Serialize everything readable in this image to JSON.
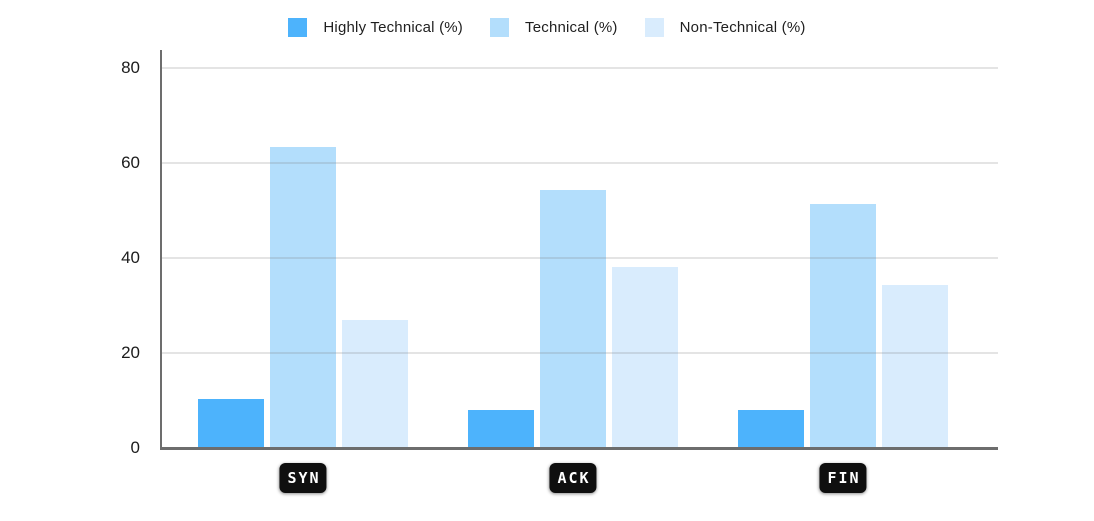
{
  "chart": {
    "background": "#ffffff",
    "axis_color": "#6d6d6d",
    "grid_color": "#e7e7e7",
    "tick_color": "#1c1c1c",
    "legend_text_color": "#1f1f1f",
    "badge_bg": "#0f0f0f",
    "badge_text_color": "#ffffff"
  },
  "chart_data": {
    "type": "bar",
    "title": "",
    "categories": [
      "SYN",
      "ACK",
      "FIN"
    ],
    "series": [
      {
        "name": "Highly Technical (%)",
        "color": "#4db3fc",
        "values": [
          10.3,
          8.1,
          8.1
        ]
      },
      {
        "name": "Technical (%)",
        "color": "#b3defc",
        "values": [
          63.4,
          54.3,
          51.4
        ]
      },
      {
        "name": "Non-Technical (%)",
        "color": "#d9ecfd",
        "values": [
          26.9,
          38.0,
          34.4
        ]
      }
    ],
    "xlabel": "",
    "ylabel": "",
    "ylim": [
      0,
      80
    ],
    "yticks": [
      0,
      20,
      40,
      60,
      80
    ],
    "grid": "horizontal",
    "legend_position": "top-center"
  }
}
